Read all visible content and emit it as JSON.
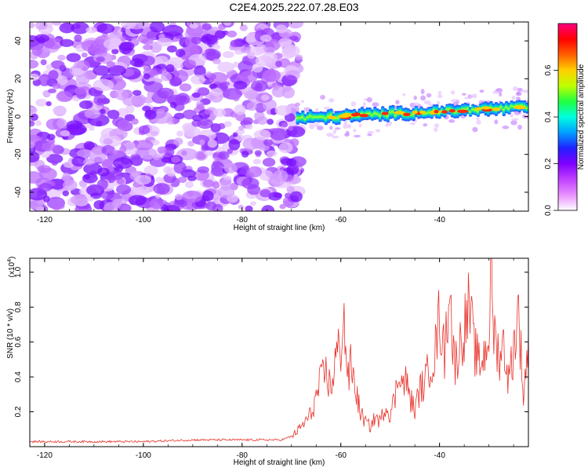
{
  "title": "C2E4.2025.222.07.28.E03",
  "colors": {
    "line": "#e8332c",
    "blob": "#7f1fff",
    "frame": "#000000"
  },
  "chart_data": [
    {
      "type": "heatmap",
      "xlabel": "Height of straight line (km)",
      "ylabel": "Frequency (Hz)",
      "xlim": [
        -123,
        -22
      ],
      "ylim": [
        -50,
        50
      ],
      "x_ticks": [
        "-120",
        "-100",
        "-80",
        "-60",
        "-40"
      ],
      "x_tick_values": [
        -120,
        -100,
        -80,
        -60,
        -40
      ],
      "y_ticks": [
        "-40",
        "-20",
        "0",
        "20",
        "40"
      ],
      "y_tick_values": [
        -40,
        -20,
        0,
        20,
        40
      ],
      "noise_region_x": [
        -123,
        -69
      ],
      "signal_band": {
        "x_start": -69,
        "x_end": -22,
        "freq_start": -1,
        "freq_end": 5,
        "approx_width_hz": 6
      },
      "colorbar": {
        "label": "Normalized spectral amplitude",
        "range": [
          0,
          0.8
        ],
        "ticks": [
          "0.0",
          "0.2",
          "0.4",
          "0.6"
        ],
        "tick_values": [
          0.0,
          0.2,
          0.4,
          0.6
        ],
        "colormap": [
          "#ffffff",
          "#e890ff",
          "#c040ff",
          "#7f00ff",
          "#2020ff",
          "#00a0ff",
          "#00ffe0",
          "#20ff40",
          "#c0ff00",
          "#ffd000",
          "#ff6000",
          "#ff0000",
          "#ff0080"
        ]
      }
    },
    {
      "type": "line",
      "xlabel": "Height of straight line (km)",
      "ylabel": "SNR (10 * v/v)",
      "y_multiplier": "(x10",
      "y_multiplier_exp": "4",
      "xlim": [
        -123,
        -22
      ],
      "ylim": [
        0,
        1.08
      ],
      "x_ticks": [
        "-120",
        "-100",
        "-80",
        "-60",
        "-40"
      ],
      "x_tick_values": [
        -120,
        -100,
        -80,
        -60,
        -40
      ],
      "y_ticks": [
        "0.2",
        "0.4",
        "0.6",
        "0.8",
        "1.0"
      ],
      "y_tick_values": [
        0.2,
        0.4,
        0.6,
        0.8,
        1.0
      ],
      "series": [
        {
          "color": "#e8332c",
          "x": [
            -123,
            -110,
            -100,
            -90,
            -80,
            -72,
            -70,
            -68,
            -66,
            -65,
            -64,
            -63,
            -62,
            -61,
            -60,
            -59.5,
            -59,
            -58.5,
            -58,
            -57,
            -56,
            -55,
            -54,
            -53,
            -52,
            -51,
            -50,
            -49,
            -48,
            -47.5,
            -47,
            -46,
            -45,
            -44,
            -43,
            -42,
            -41,
            -40,
            -39,
            -38.5,
            -38,
            -37.5,
            -37,
            -36,
            -35,
            -34,
            -33,
            -32,
            -31,
            -30,
            -29.5,
            -29,
            -28,
            -27,
            -26,
            -25,
            -24,
            -23,
            -22
          ],
          "y": [
            0.03,
            0.03,
            0.03,
            0.04,
            0.04,
            0.04,
            0.06,
            0.12,
            0.2,
            0.3,
            0.4,
            0.45,
            0.35,
            0.55,
            0.6,
            0.82,
            0.6,
            0.4,
            0.5,
            0.35,
            0.2,
            0.15,
            0.12,
            0.18,
            0.15,
            0.25,
            0.2,
            0.3,
            0.5,
            0.35,
            0.42,
            0.3,
            0.22,
            0.35,
            0.38,
            0.5,
            0.55,
            0.8,
            0.55,
            0.75,
            1.08,
            0.7,
            0.5,
            0.6,
            0.72,
            0.85,
            0.6,
            0.5,
            0.55,
            0.7,
            1.05,
            0.7,
            0.55,
            0.62,
            0.4,
            0.6,
            0.83,
            0.3,
            0.65
          ]
        }
      ]
    }
  ]
}
